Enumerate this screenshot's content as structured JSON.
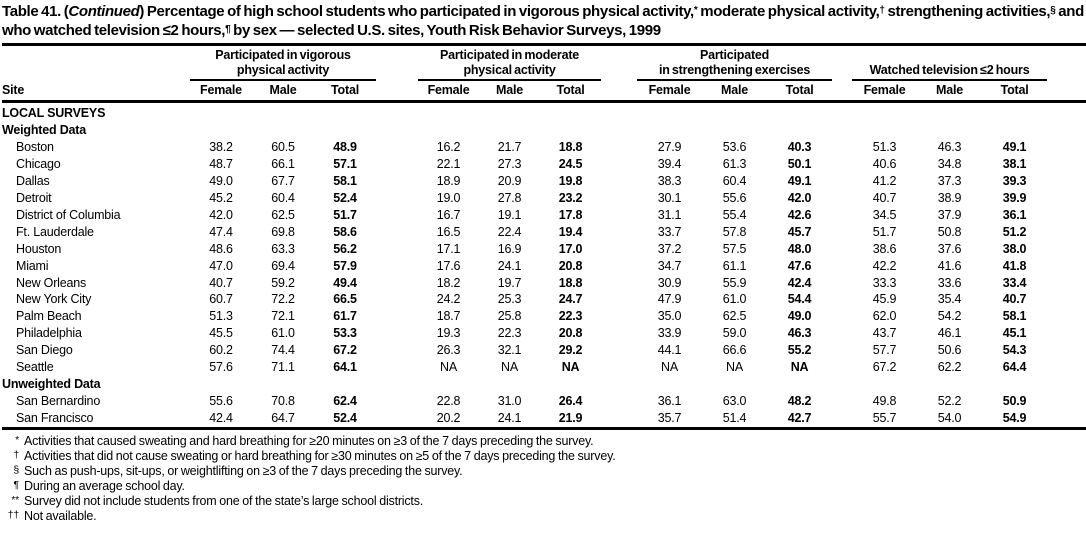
{
  "title": {
    "segments": [
      {
        "text": "Table 41. ("
      },
      {
        "text": "Continued",
        "style": "cont"
      },
      {
        "text": ") Percentage of high school students who participated in vigorous physical activity,"
      },
      {
        "text": "*",
        "style": "sup"
      },
      {
        "text": " moderate physical activity,"
      },
      {
        "text": "†",
        "style": "sup"
      },
      {
        "text": " strengthening activities,"
      },
      {
        "text": "§",
        "style": "sup"
      },
      {
        "text": " and who watched television ≤2 hours,"
      },
      {
        "text": "¶",
        "style": "sup"
      },
      {
        "text": " by sex — selected U.S. sites, Youth Risk Behavior Surveys, 1999"
      }
    ]
  },
  "table": {
    "site_header": "Site",
    "groups": [
      {
        "line1": "Participated in vigorous",
        "line2": "physical activity"
      },
      {
        "line1": "Participated in moderate",
        "line2": "physical activity"
      },
      {
        "line1": "Participated",
        "line2": "in strengthening exercises"
      },
      {
        "line1": "",
        "line2": "Watched television ≤2 hours"
      }
    ],
    "sub_columns": [
      "Female",
      "Male",
      "Total"
    ],
    "rows": [
      {
        "kind": "header",
        "label": "LOCAL SURVEYS"
      },
      {
        "kind": "subheader",
        "label": "Weighted Data"
      },
      {
        "kind": "data",
        "site": "Boston",
        "values": [
          "38.2",
          "60.5",
          "48.9",
          "16.2",
          "21.7",
          "18.8",
          "27.9",
          "53.6",
          "40.3",
          "51.3",
          "46.3",
          "49.1"
        ]
      },
      {
        "kind": "data",
        "site": "Chicago",
        "values": [
          "48.7",
          "66.1",
          "57.1",
          "22.1",
          "27.3",
          "24.5",
          "39.4",
          "61.3",
          "50.1",
          "40.6",
          "34.8",
          "38.1"
        ]
      },
      {
        "kind": "data",
        "site": "Dallas",
        "values": [
          "49.0",
          "67.7",
          "58.1",
          "18.9",
          "20.9",
          "19.8",
          "38.3",
          "60.4",
          "49.1",
          "41.2",
          "37.3",
          "39.3"
        ]
      },
      {
        "kind": "data",
        "site": "Detroit",
        "values": [
          "45.2",
          "60.4",
          "52.4",
          "19.0",
          "27.8",
          "23.2",
          "30.1",
          "55.6",
          "42.0",
          "40.7",
          "38.9",
          "39.9"
        ]
      },
      {
        "kind": "data",
        "site": "District of Columbia",
        "values": [
          "42.0",
          "62.5",
          "51.7",
          "16.7",
          "19.1",
          "17.8",
          "31.1",
          "55.4",
          "42.6",
          "34.5",
          "37.9",
          "36.1"
        ]
      },
      {
        "kind": "data",
        "site": "Ft. Lauderdale",
        "values": [
          "47.4",
          "69.8",
          "58.6",
          "16.5",
          "22.4",
          "19.4",
          "33.7",
          "57.8",
          "45.7",
          "51.7",
          "50.8",
          "51.2"
        ]
      },
      {
        "kind": "data",
        "site": "Houston",
        "values": [
          "48.6",
          "63.3",
          "56.2",
          "17.1",
          "16.9",
          "17.0",
          "37.2",
          "57.5",
          "48.0",
          "38.6",
          "37.6",
          "38.0"
        ]
      },
      {
        "kind": "data",
        "site": "Miami",
        "values": [
          "47.0",
          "69.4",
          "57.9",
          "17.6",
          "24.1",
          "20.8",
          "34.7",
          "61.1",
          "47.6",
          "42.2",
          "41.6",
          "41.8"
        ]
      },
      {
        "kind": "data",
        "site": "New Orleans",
        "values": [
          "40.7",
          "59.2",
          "49.4",
          "18.2",
          "19.7",
          "18.8",
          "30.9",
          "55.9",
          "42.4",
          "33.3",
          "33.6",
          "33.4"
        ]
      },
      {
        "kind": "data",
        "site": "New York City",
        "values": [
          "60.7",
          "72.2",
          "66.5",
          "24.2",
          "25.3",
          "24.7",
          "47.9",
          "61.0",
          "54.4",
          "45.9",
          "35.4",
          "40.7"
        ]
      },
      {
        "kind": "data",
        "site": "Palm Beach",
        "values": [
          "51.3",
          "72.1",
          "61.7",
          "18.7",
          "25.8",
          "22.3",
          "35.0",
          "62.5",
          "49.0",
          "62.0",
          "54.2",
          "58.1"
        ]
      },
      {
        "kind": "data",
        "site": "Philadelphia",
        "values": [
          "45.5",
          "61.0",
          "53.3",
          "19.3",
          "22.3",
          "20.8",
          "33.9",
          "59.0",
          "46.3",
          "43.7",
          "46.1",
          "45.1"
        ]
      },
      {
        "kind": "data",
        "site": "San Diego",
        "values": [
          "60.2",
          "74.4",
          "67.2",
          "26.3",
          "32.1",
          "29.2",
          "44.1",
          "66.6",
          "55.2",
          "57.7",
          "50.6",
          "54.3"
        ]
      },
      {
        "kind": "data",
        "site": "Seattle",
        "values": [
          "57.6",
          "71.1",
          "64.1",
          "NA",
          "NA",
          "NA",
          "NA",
          "NA",
          "NA",
          "67.2",
          "62.2",
          "64.4"
        ]
      },
      {
        "kind": "subheader",
        "label": "Unweighted Data"
      },
      {
        "kind": "data",
        "site": "San Bernardino",
        "values": [
          "55.6",
          "70.8",
          "62.4",
          "22.8",
          "31.0",
          "26.4",
          "36.1",
          "63.0",
          "48.2",
          "49.8",
          "52.2",
          "50.9"
        ]
      },
      {
        "kind": "data",
        "site": "San Francisco",
        "values": [
          "42.4",
          "64.7",
          "52.4",
          "20.2",
          "24.1",
          "21.9",
          "35.7",
          "51.4",
          "42.7",
          "55.7",
          "54.0",
          "54.9"
        ]
      }
    ]
  },
  "footnotes": [
    {
      "marker": "*",
      "text": "Activities that caused sweating and hard breathing for ≥20 minutes on ≥3 of the 7 days preceding the survey."
    },
    {
      "marker": "†",
      "text": "Activities that did not cause sweating or hard breathing for ≥30 minutes on ≥5 of the 7 days preceding the survey."
    },
    {
      "marker": "§",
      "text": "Such as push-ups, sit-ups, or weightlifting on ≥3 of the 7 days preceding the survey."
    },
    {
      "marker": "¶",
      "text": "During an average school day."
    },
    {
      "marker": "**",
      "text": "Survey did not include students from one of the state’s large school districts."
    },
    {
      "marker": "††",
      "text": "Not available."
    }
  ]
}
